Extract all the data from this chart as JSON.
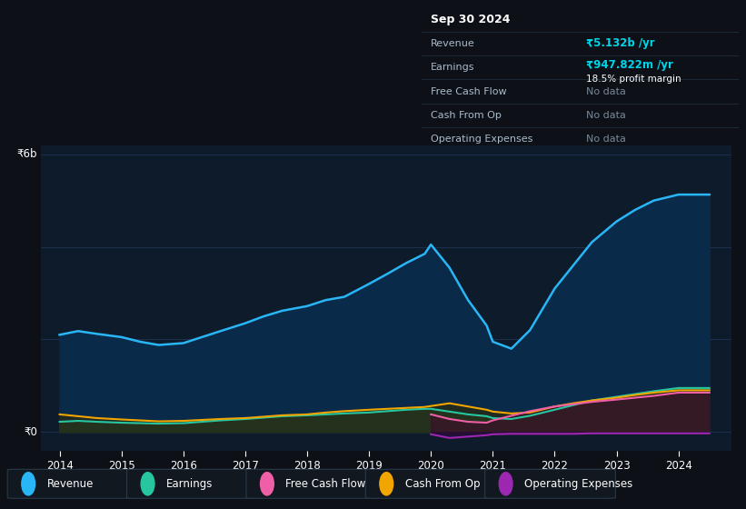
{
  "bg_color": "#0d1117",
  "plot_bg_color": "#0d1b2a",
  "grid_color": "#1e3050",
  "years": [
    2014.0,
    2014.3,
    2014.6,
    2015.0,
    2015.3,
    2015.6,
    2016.0,
    2016.3,
    2016.6,
    2017.0,
    2017.3,
    2017.6,
    2018.0,
    2018.3,
    2018.6,
    2019.0,
    2019.3,
    2019.6,
    2019.9,
    2020.0,
    2020.3,
    2020.6,
    2020.9,
    2021.0,
    2021.3,
    2021.6,
    2022.0,
    2022.3,
    2022.6,
    2023.0,
    2023.3,
    2023.6,
    2024.0,
    2024.5
  ],
  "revenue": [
    2.1,
    2.18,
    2.12,
    2.05,
    1.95,
    1.88,
    1.92,
    2.05,
    2.18,
    2.35,
    2.5,
    2.62,
    2.72,
    2.85,
    2.92,
    3.2,
    3.42,
    3.65,
    3.85,
    4.05,
    3.55,
    2.85,
    2.3,
    1.95,
    1.8,
    2.2,
    3.1,
    3.6,
    4.1,
    4.55,
    4.8,
    5.0,
    5.13,
    5.13
  ],
  "earnings": [
    0.22,
    0.24,
    0.22,
    0.2,
    0.19,
    0.18,
    0.19,
    0.22,
    0.25,
    0.28,
    0.31,
    0.34,
    0.36,
    0.38,
    0.4,
    0.42,
    0.45,
    0.48,
    0.5,
    0.5,
    0.44,
    0.38,
    0.34,
    0.3,
    0.28,
    0.35,
    0.48,
    0.58,
    0.68,
    0.76,
    0.82,
    0.88,
    0.95,
    0.95
  ],
  "free_cash_flow": [
    null,
    null,
    null,
    null,
    null,
    null,
    null,
    null,
    null,
    null,
    null,
    null,
    null,
    null,
    null,
    null,
    null,
    null,
    null,
    0.38,
    0.28,
    0.22,
    0.2,
    0.25,
    0.35,
    0.45,
    0.55,
    0.6,
    0.65,
    0.7,
    0.74,
    0.78,
    0.85,
    0.85
  ],
  "cash_from_op": [
    0.38,
    0.34,
    0.3,
    0.27,
    0.25,
    0.23,
    0.24,
    0.26,
    0.28,
    0.3,
    0.33,
    0.36,
    0.38,
    0.42,
    0.45,
    0.48,
    0.5,
    0.52,
    0.54,
    0.56,
    0.62,
    0.55,
    0.48,
    0.44,
    0.4,
    0.42,
    0.55,
    0.62,
    0.68,
    0.74,
    0.8,
    0.85,
    0.9,
    0.9
  ],
  "operating_expenses": [
    null,
    null,
    null,
    null,
    null,
    null,
    null,
    null,
    null,
    null,
    null,
    null,
    null,
    null,
    null,
    null,
    null,
    null,
    null,
    -0.05,
    -0.13,
    -0.1,
    -0.07,
    -0.05,
    -0.04,
    -0.04,
    -0.04,
    -0.04,
    -0.03,
    -0.03,
    -0.03,
    -0.03,
    -0.03,
    -0.03
  ],
  "revenue_color": "#29b6f6",
  "earnings_color": "#26c6a0",
  "free_cash_flow_color": "#ef5fa7",
  "cash_from_op_color": "#f0a500",
  "operating_expenses_color": "#9c27b0",
  "xtick_labels": [
    "2014",
    "2015",
    "2016",
    "2017",
    "2018",
    "2019",
    "2020",
    "2021",
    "2022",
    "2023",
    "2024"
  ],
  "xtick_positions": [
    2014,
    2015,
    2016,
    2017,
    2018,
    2019,
    2020,
    2021,
    2022,
    2023,
    2024
  ],
  "ylim": [
    -0.4,
    6.2
  ],
  "ymax": 6.0,
  "info_box": {
    "date": "Sep 30 2024",
    "revenue_label": "Revenue",
    "revenue_value": "₹5.132b /yr",
    "earnings_label": "Earnings",
    "earnings_value": "₹947.822m /yr",
    "margin_label": "18.5% profit margin",
    "fcf_label": "Free Cash Flow",
    "fcf_value": "No data",
    "cashop_label": "Cash From Op",
    "cashop_value": "No data",
    "opex_label": "Operating Expenses",
    "opex_value": "No data"
  },
  "legend_items": [
    {
      "label": "Revenue",
      "color": "#29b6f6"
    },
    {
      "label": "Earnings",
      "color": "#26c6a0"
    },
    {
      "label": "Free Cash Flow",
      "color": "#ef5fa7"
    },
    {
      "label": "Cash From Op",
      "color": "#f0a500"
    },
    {
      "label": "Operating Expenses",
      "color": "#9c27b0"
    }
  ]
}
